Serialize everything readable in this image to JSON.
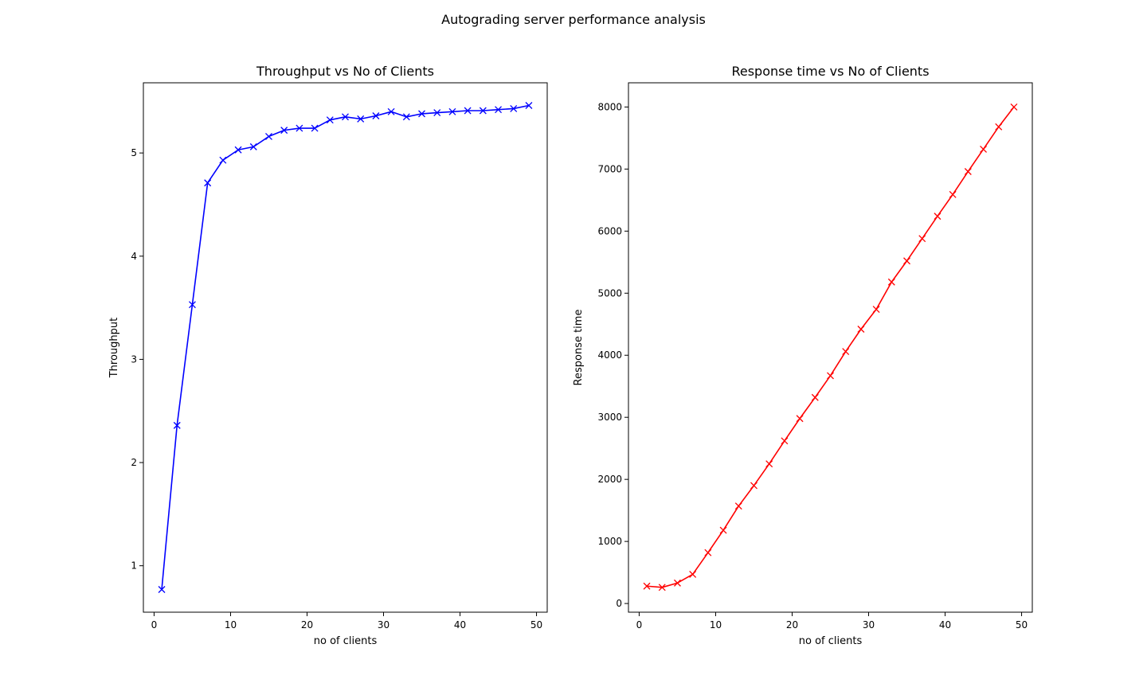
{
  "figure": {
    "suptitle": "Autograding server performance analysis"
  },
  "chart_data": [
    {
      "type": "line",
      "title": "Throughput vs No of Clients",
      "xlabel": "no of clients",
      "ylabel": "Throughput",
      "xlim": [
        -1.4,
        51.4
      ],
      "ylim": [
        0.55,
        5.68
      ],
      "xticks": [
        0,
        10,
        20,
        30,
        40,
        50
      ],
      "yticks": [
        1,
        2,
        3,
        4,
        5
      ],
      "grid": false,
      "series": [
        {
          "color": "#0000ff",
          "marker": "x",
          "x": [
            1,
            3,
            5,
            7,
            9,
            11,
            13,
            15,
            17,
            19,
            21,
            23,
            25,
            27,
            29,
            31,
            33,
            35,
            37,
            39,
            41,
            43,
            45,
            47,
            49
          ],
          "y": [
            0.77,
            2.36,
            3.53,
            4.71,
            4.93,
            5.03,
            5.06,
            5.16,
            5.22,
            5.24,
            5.24,
            5.32,
            5.35,
            5.33,
            5.36,
            5.4,
            5.35,
            5.38,
            5.39,
            5.4,
            5.41,
            5.41,
            5.42,
            5.43,
            5.46
          ]
        }
      ]
    },
    {
      "type": "line",
      "title": "Response time vs No of Clients",
      "xlabel": "no of clients",
      "ylabel": "Response time",
      "xlim": [
        -1.4,
        51.4
      ],
      "ylim": [
        -140,
        8390
      ],
      "xticks": [
        0,
        10,
        20,
        30,
        40,
        50
      ],
      "yticks": [
        0,
        1000,
        2000,
        3000,
        4000,
        5000,
        6000,
        7000,
        8000
      ],
      "grid": false,
      "series": [
        {
          "color": "#ff0000",
          "marker": "x",
          "x": [
            1,
            3,
            5,
            7,
            9,
            11,
            13,
            15,
            17,
            19,
            21,
            23,
            25,
            27,
            29,
            31,
            33,
            35,
            37,
            39,
            41,
            43,
            45,
            47,
            49
          ],
          "y": [
            280,
            260,
            330,
            470,
            820,
            1180,
            1570,
            1900,
            2250,
            2620,
            2980,
            3320,
            3670,
            4060,
            4420,
            4740,
            5180,
            5520,
            5880,
            6240,
            6590,
            6960,
            7320,
            7680,
            8000
          ]
        }
      ]
    }
  ]
}
